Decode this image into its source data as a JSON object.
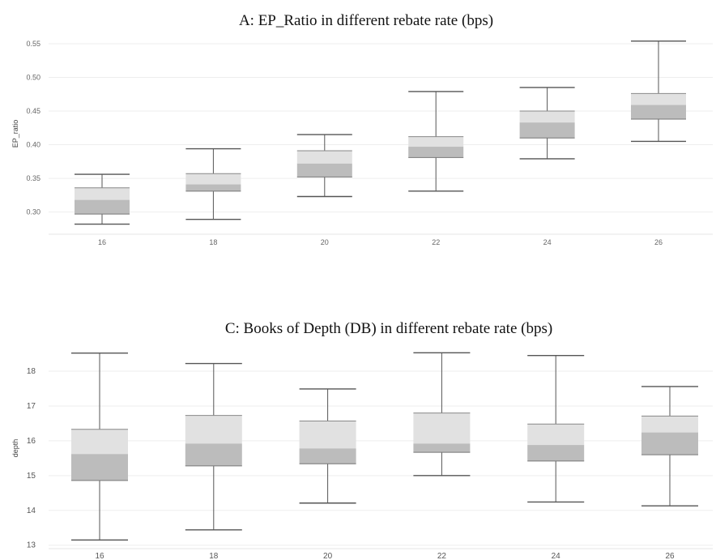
{
  "chart_data": [
    {
      "type": "box",
      "title": "A: EP_Ratio in different rebate rate (bps)",
      "xlabel": "",
      "ylabel": "EP_ratio",
      "categories": [
        "16",
        "18",
        "20",
        "22",
        "24",
        "26"
      ],
      "yticks": [
        "0.30",
        "0.35",
        "0.40",
        "0.45",
        "0.50",
        "0.55"
      ],
      "ytick_values": [
        0.3,
        0.35,
        0.4,
        0.45,
        0.5,
        0.55
      ],
      "ylim": [
        0.267,
        0.562
      ],
      "grid": true,
      "boxes": [
        {
          "category": "16",
          "min": 0.282,
          "q1": 0.297,
          "median": 0.318,
          "q3": 0.336,
          "max": 0.356
        },
        {
          "category": "18",
          "min": 0.289,
          "q1": 0.331,
          "median": 0.341,
          "q3": 0.357,
          "max": 0.394
        },
        {
          "category": "20",
          "min": 0.323,
          "q1": 0.352,
          "median": 0.372,
          "q3": 0.391,
          "max": 0.415
        },
        {
          "category": "22",
          "min": 0.331,
          "q1": 0.381,
          "median": 0.397,
          "q3": 0.412,
          "max": 0.479
        },
        {
          "category": "24",
          "min": 0.379,
          "q1": 0.41,
          "median": 0.433,
          "q3": 0.45,
          "max": 0.485
        },
        {
          "category": "26",
          "min": 0.405,
          "q1": 0.438,
          "median": 0.459,
          "q3": 0.476,
          "max": 0.554
        }
      ]
    },
    {
      "type": "box",
      "title": "C: Books of Depth (DB) in different rebate rate (bps)",
      "xlabel": "",
      "ylabel": "depth",
      "categories": [
        "16",
        "18",
        "20",
        "22",
        "24",
        "26"
      ],
      "yticks": [
        "13",
        "14",
        "15",
        "16",
        "17",
        "18"
      ],
      "ytick_values": [
        13,
        14,
        15,
        16,
        17,
        18
      ],
      "ylim": [
        12.9,
        18.7
      ],
      "grid": true,
      "boxes": [
        {
          "category": "16",
          "min": 13.15,
          "q1": 14.86,
          "median": 15.62,
          "q3": 16.33,
          "max": 18.52
        },
        {
          "category": "18",
          "min": 13.44,
          "q1": 15.28,
          "median": 15.92,
          "q3": 16.73,
          "max": 18.22
        },
        {
          "category": "20",
          "min": 14.21,
          "q1": 15.34,
          "median": 15.78,
          "q3": 16.57,
          "max": 17.49
        },
        {
          "category": "22",
          "min": 15.0,
          "q1": 15.67,
          "median": 15.92,
          "q3": 16.8,
          "max": 18.53
        },
        {
          "category": "24",
          "min": 14.24,
          "q1": 15.42,
          "median": 15.88,
          "q3": 16.48,
          "max": 18.45
        },
        {
          "category": "26",
          "min": 14.13,
          "q1": 15.6,
          "median": 16.24,
          "q3": 16.71,
          "max": 17.56
        }
      ]
    }
  ],
  "colors": {
    "upper_box": "#e1e1e1",
    "lower_box": "#bcbcbc",
    "whisker": "#555555",
    "grid": "#eeeeee"
  }
}
